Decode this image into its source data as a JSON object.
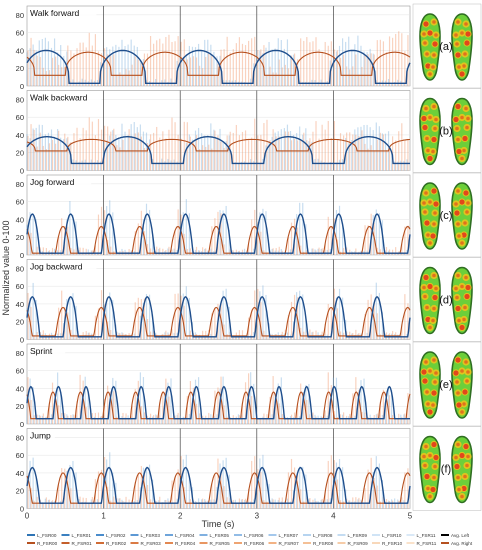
{
  "figure": {
    "ylabel": "Normalized value 0-100",
    "xlabel": "Time (s)",
    "xticks": [
      "0",
      "1",
      "2",
      "3",
      "4",
      "5"
    ],
    "yticks": [
      "0",
      "20",
      "40",
      "60",
      "80"
    ],
    "colors": {
      "left_avg": "#1f4e8c",
      "left_sensor": "#6fa8d8",
      "right_avg": "#b5501f",
      "right_sensor": "#f08c5a",
      "insole_base": "#6ccf3a",
      "insole_hot": "#e23a1c",
      "insole_warm": "#f2c21b",
      "insole_outline": "#2f6e22"
    }
  },
  "chart_data": [
    {
      "type": "line",
      "title": "Walk forward",
      "xlim": [
        0,
        5
      ],
      "ylim": [
        0,
        90
      ],
      "yticks": [
        0,
        20,
        40,
        60,
        80
      ],
      "insole_label": "(a)",
      "series": [
        {
          "name": "Avg. Left",
          "period_s": 1.0,
          "peak": 40,
          "baseline": 3,
          "shape": "plateau"
        },
        {
          "name": "Avg. Right",
          "period_s": 1.0,
          "peak": 38,
          "baseline": 12,
          "shape": "plateau"
        }
      ]
    },
    {
      "type": "line",
      "title": "Walk backward",
      "xlim": [
        0,
        5
      ],
      "ylim": [
        0,
        90
      ],
      "yticks": [
        0,
        20,
        40,
        60,
        80
      ],
      "insole_label": "(b)",
      "series": [
        {
          "name": "Avg. Left",
          "period_s": 1.05,
          "peak": 38,
          "baseline": 8,
          "shape": "plateau"
        },
        {
          "name": "Avg. Right",
          "period_s": 1.05,
          "peak": 35,
          "baseline": 22,
          "shape": "plateau"
        }
      ]
    },
    {
      "type": "line",
      "title": "Jog forward",
      "xlim": [
        0,
        5
      ],
      "ylim": [
        0,
        90
      ],
      "yticks": [
        0,
        20,
        40,
        60,
        80
      ],
      "insole_label": "(c)",
      "series": [
        {
          "name": "Avg. Left",
          "period_s": 0.5,
          "peak": 46,
          "baseline": 2,
          "shape": "pulse"
        },
        {
          "name": "Avg. Right",
          "period_s": 0.5,
          "peak": 32,
          "baseline": 2,
          "shape": "pulse"
        }
      ]
    },
    {
      "type": "line",
      "title": "Jog backward",
      "xlim": [
        0,
        5
      ],
      "ylim": [
        0,
        90
      ],
      "yticks": [
        0,
        20,
        40,
        60,
        80
      ],
      "insole_label": "(d)",
      "series": [
        {
          "name": "Avg. Left",
          "period_s": 0.5,
          "peak": 48,
          "baseline": 3,
          "shape": "pulse"
        },
        {
          "name": "Avg. Right",
          "period_s": 0.5,
          "peak": 36,
          "baseline": 4,
          "shape": "pulse"
        }
      ]
    },
    {
      "type": "line",
      "title": "Sprint",
      "xlim": [
        0,
        5
      ],
      "ylim": [
        0,
        90
      ],
      "yticks": [
        0,
        20,
        40,
        60,
        80
      ],
      "insole_label": "(e)",
      "series": [
        {
          "name": "Avg. Left",
          "period_s": 0.36,
          "peak": 42,
          "baseline": 6,
          "shape": "pulse"
        },
        {
          "name": "Avg. Right",
          "period_s": 0.36,
          "peak": 36,
          "baseline": 6,
          "shape": "pulse"
        }
      ]
    },
    {
      "type": "line",
      "title": "Jump",
      "xlim": [
        0,
        5
      ],
      "ylim": [
        0,
        90
      ],
      "yticks": [
        0,
        20,
        40,
        60,
        80
      ],
      "insole_label": "(f)",
      "series": [
        {
          "name": "Avg. Left",
          "period_s": 0.5,
          "peak": 46,
          "baseline": 6,
          "shape": "pulse"
        },
        {
          "name": "Avg. Right",
          "period_s": 0.5,
          "peak": 40,
          "baseline": 6,
          "shape": "pulse"
        }
      ]
    }
  ],
  "legend": {
    "entries": [
      "L_FSR00",
      "L_FSR01",
      "L_FSR02",
      "L_FSR03",
      "L_FSR04",
      "L_FSR05",
      "L_FSR06",
      "L_FSR07",
      "L_FSR08",
      "L_FSR09",
      "L_FSR10",
      "L_FSR11",
      "Avg. Left",
      "R_FSR00",
      "R_FSR01",
      "R_FSR02",
      "R_FSR03",
      "R_FSR04",
      "R_FSR05",
      "R_FSR06",
      "R_FSR07",
      "R_FSR08",
      "R_FSR09",
      "R_FSR10",
      "R_FSR11",
      "Avg. Right"
    ]
  }
}
